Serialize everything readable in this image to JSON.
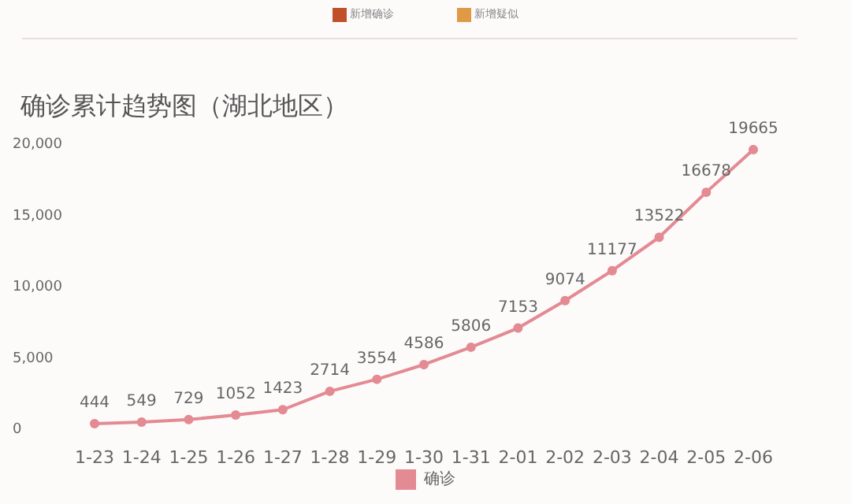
{
  "chart_data": {
    "type": "line",
    "title": "确诊累计趋势图（湖北地区）",
    "annotations": [
      "新增确诊",
      "新增疑似"
    ],
    "categories": [
      "1-23",
      "1-24",
      "1-25",
      "1-26",
      "1-27",
      "1-28",
      "1-29",
      "1-30",
      "1-31",
      "2-01",
      "2-02",
      "2-03",
      "2-04",
      "2-05",
      "2-06"
    ],
    "series": [
      {
        "name": "确诊",
        "color": "#e38a93",
        "values": [
          444,
          549,
          729,
          1052,
          1423,
          2714,
          3554,
          4586,
          5806,
          7153,
          9074,
          11177,
          13522,
          16678,
          19665
        ]
      }
    ],
    "ylim": [
      0,
      20000
    ],
    "yticks": [
      {
        "value": 0,
        "label": "0"
      },
      {
        "value": 5000,
        "label": "5,000"
      },
      {
        "value": 10000,
        "label": "10,000"
      },
      {
        "value": 15000,
        "label": "15,000"
      },
      {
        "value": 20000,
        "label": "20,000"
      }
    ],
    "grid": false,
    "legend": "bottom",
    "marker": "circle",
    "line_style": "solid",
    "data_labels": true
  }
}
